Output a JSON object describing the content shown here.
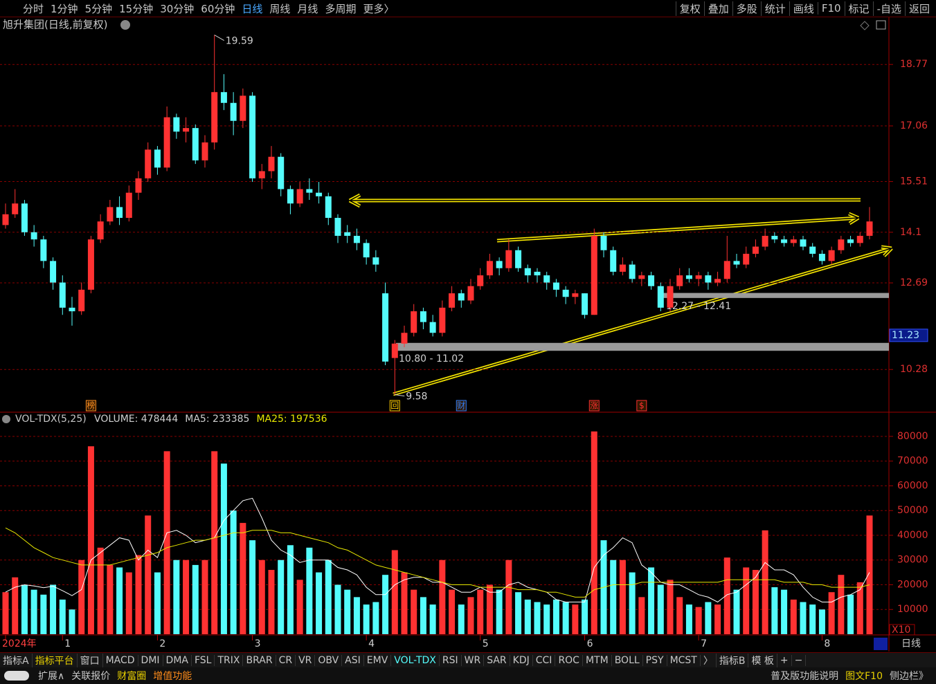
{
  "toolbar": {
    "left": [
      "分时",
      "1分钟",
      "5分钟",
      "15分钟",
      "30分钟",
      "60分钟",
      "日线",
      "周线",
      "月线",
      "多周期",
      "更多〉"
    ],
    "right": [
      "复权",
      "叠加",
      "多股",
      "统计",
      "画线",
      "F10",
      "标记",
      "-自选",
      "返回"
    ]
  },
  "chart_data": [
    {
      "type": "candlestick",
      "title": "旭升集团(日线,前复权)",
      "categories": [
        "2024年",
        null,
        null,
        null,
        null,
        null,
        "1",
        null,
        null,
        null,
        null,
        null,
        null,
        null,
        null,
        null,
        "2",
        null,
        null,
        null,
        null,
        null,
        null,
        null,
        null,
        null,
        "3",
        null,
        null,
        null,
        null,
        null,
        null,
        null,
        null,
        null,
        null,
        null,
        "4",
        null,
        null,
        null,
        null,
        null,
        null,
        null,
        null,
        null,
        null,
        null,
        "5",
        null,
        null,
        null,
        null,
        null,
        null,
        null,
        null,
        null,
        null,
        "6",
        null,
        null,
        null,
        null,
        null,
        null,
        null,
        null,
        null,
        null,
        null,
        "7",
        null,
        null,
        null,
        null,
        null,
        null,
        null,
        null,
        null,
        null,
        null,
        null,
        "8",
        null,
        null,
        null,
        null,
        null
      ],
      "values": [
        [
          14.3,
          14.9,
          14.2,
          14.6
        ],
        [
          14.6,
          15.3,
          14.5,
          14.9
        ],
        [
          14.9,
          15.0,
          14.0,
          14.1
        ],
        [
          14.1,
          14.3,
          13.7,
          13.9
        ],
        [
          13.9,
          14.0,
          13.1,
          13.3
        ],
        [
          13.3,
          13.4,
          12.5,
          12.7
        ],
        [
          12.7,
          12.9,
          11.8,
          12.0
        ],
        [
          12.0,
          12.3,
          11.5,
          11.9
        ],
        [
          11.9,
          12.7,
          11.8,
          12.5
        ],
        [
          12.5,
          14.0,
          12.4,
          13.9
        ],
        [
          13.9,
          14.6,
          13.8,
          14.4
        ],
        [
          14.4,
          15.0,
          14.3,
          14.8
        ],
        [
          14.8,
          15.1,
          14.3,
          14.5
        ],
        [
          14.5,
          15.4,
          14.4,
          15.2
        ],
        [
          15.2,
          15.8,
          15.0,
          15.6
        ],
        [
          15.6,
          16.6,
          15.5,
          16.4
        ],
        [
          16.4,
          16.5,
          15.7,
          15.9
        ],
        [
          15.9,
          17.6,
          15.8,
          17.3
        ],
        [
          17.3,
          17.4,
          16.7,
          16.9
        ],
        [
          16.9,
          17.3,
          16.6,
          17.0
        ],
        [
          17.0,
          17.1,
          16.0,
          16.1
        ],
        [
          16.1,
          16.8,
          15.9,
          16.6
        ],
        [
          16.6,
          19.59,
          16.4,
          18.0
        ],
        [
          18.0,
          18.5,
          17.5,
          17.7
        ],
        [
          17.7,
          18.0,
          16.8,
          17.2
        ],
        [
          17.2,
          18.1,
          17.0,
          17.9
        ],
        [
          17.9,
          18.0,
          15.5,
          15.6
        ],
        [
          15.6,
          16.0,
          15.3,
          15.8
        ],
        [
          15.8,
          16.5,
          15.6,
          16.2
        ],
        [
          16.2,
          16.3,
          15.1,
          15.3
        ],
        [
          15.3,
          15.4,
          14.6,
          14.9
        ],
        [
          14.9,
          15.5,
          14.8,
          15.3
        ],
        [
          15.3,
          15.6,
          15.0,
          15.2
        ],
        [
          15.2,
          15.5,
          14.9,
          15.1
        ],
        [
          15.1,
          15.2,
          14.3,
          14.5
        ],
        [
          14.5,
          14.6,
          13.8,
          14.0
        ],
        [
          14.1,
          14.3,
          13.8,
          14.0
        ],
        [
          14.0,
          14.2,
          13.6,
          13.8
        ],
        [
          13.8,
          13.9,
          13.2,
          13.4
        ],
        [
          13.4,
          13.6,
          13.0,
          13.2
        ],
        [
          12.4,
          12.7,
          10.4,
          10.5
        ],
        [
          10.6,
          11.1,
          9.58,
          11.0
        ],
        [
          11.0,
          11.5,
          10.9,
          11.3
        ],
        [
          11.3,
          12.1,
          11.2,
          11.9
        ],
        [
          11.9,
          12.0,
          11.4,
          11.6
        ],
        [
          11.6,
          11.8,
          11.2,
          11.3
        ],
        [
          11.3,
          12.2,
          11.2,
          12.0
        ],
        [
          12.0,
          12.6,
          11.9,
          12.4
        ],
        [
          12.4,
          12.5,
          12.0,
          12.2
        ],
        [
          12.2,
          12.8,
          12.1,
          12.6
        ],
        [
          12.6,
          13.1,
          12.5,
          12.9
        ],
        [
          12.9,
          13.5,
          12.8,
          13.3
        ],
        [
          13.3,
          13.4,
          12.9,
          13.1
        ],
        [
          13.1,
          13.9,
          13.0,
          13.6
        ],
        [
          13.6,
          13.7,
          13.0,
          13.1
        ],
        [
          13.1,
          13.2,
          12.7,
          12.9
        ],
        [
          13.0,
          13.1,
          12.7,
          12.9
        ],
        [
          12.9,
          13.0,
          12.5,
          12.7
        ],
        [
          12.7,
          12.8,
          12.3,
          12.5
        ],
        [
          12.5,
          12.6,
          12.1,
          12.3
        ],
        [
          12.3,
          12.5,
          12.1,
          12.4
        ],
        [
          12.4,
          12.4,
          11.7,
          11.8
        ],
        [
          11.8,
          14.2,
          11.8,
          14.0
        ],
        [
          14.0,
          14.1,
          13.4,
          13.6
        ],
        [
          13.6,
          13.7,
          12.9,
          13.0
        ],
        [
          13.0,
          13.4,
          12.9,
          13.2
        ],
        [
          13.2,
          13.3,
          12.7,
          12.8
        ],
        [
          12.8,
          13.0,
          12.6,
          12.9
        ],
        [
          12.9,
          13.0,
          12.5,
          12.6
        ],
        [
          12.6,
          12.7,
          11.9,
          12.0
        ],
        [
          12.0,
          12.8,
          11.9,
          12.6
        ],
        [
          12.6,
          13.1,
          12.5,
          12.9
        ],
        [
          12.9,
          13.1,
          12.7,
          12.8
        ],
        [
          12.8,
          13.0,
          12.6,
          12.9
        ],
        [
          12.9,
          13.0,
          12.5,
          12.7
        ],
        [
          12.7,
          13.0,
          12.6,
          12.8
        ],
        [
          12.8,
          14.0,
          12.7,
          13.3
        ],
        [
          13.3,
          13.5,
          13.1,
          13.2
        ],
        [
          13.2,
          13.7,
          13.1,
          13.5
        ],
        [
          13.5,
          13.9,
          13.4,
          13.7
        ],
        [
          13.7,
          14.2,
          13.6,
          14.0
        ],
        [
          14.0,
          14.1,
          13.8,
          13.9
        ],
        [
          13.9,
          14.0,
          13.7,
          13.8
        ],
        [
          13.8,
          14.0,
          13.7,
          13.9
        ],
        [
          13.9,
          14.0,
          13.6,
          13.7
        ],
        [
          13.7,
          13.8,
          13.4,
          13.5
        ],
        [
          13.5,
          13.6,
          13.2,
          13.3
        ],
        [
          13.3,
          13.7,
          13.2,
          13.6
        ],
        [
          13.6,
          14.0,
          13.5,
          13.9
        ],
        [
          13.9,
          14.0,
          13.7,
          13.8
        ],
        [
          13.8,
          14.1,
          13.7,
          14.0
        ],
        [
          14.0,
          14.8,
          13.9,
          14.4
        ]
      ],
      "up_color": "#ff3232",
      "down_color": "#54fcfc",
      "ylim": [
        9.11,
        19.64
      ],
      "yticks": [
        10.28,
        12.69,
        14.1,
        15.51,
        17.06,
        18.77
      ],
      "grid": true,
      "high_mark": 19.59,
      "low_mark": 9.58,
      "current_price": 11.23,
      "zones": [
        {
          "label": "10.80 - 11.02",
          "range": [
            10.8,
            11.02
          ]
        },
        {
          "label": "12.27 - 12.41",
          "range": [
            12.27,
            12.41
          ]
        }
      ],
      "events": [
        "榜",
        "回",
        "财",
        "涨",
        "$"
      ]
    },
    {
      "type": "bar",
      "title": "VOL-TDX(5,25)",
      "unit_label": "X10",
      "series": [
        {
          "name": "VOLUME: 478444",
          "values": [
            17000,
            23000,
            20000,
            18000,
            16000,
            20000,
            14000,
            10000,
            30000,
            76000,
            35000,
            28000,
            27000,
            25000,
            32000,
            48000,
            25000,
            74000,
            30000,
            30000,
            28000,
            30000,
            74000,
            69000,
            50000,
            45000,
            38000,
            30000,
            26000,
            30000,
            36000,
            22000,
            35000,
            25000,
            30000,
            20000,
            18000,
            15000,
            12000,
            13000,
            24000,
            34000,
            25000,
            18000,
            15000,
            12000,
            30000,
            18000,
            12000,
            15000,
            18000,
            20000,
            18000,
            30000,
            17000,
            14000,
            13000,
            12000,
            14000,
            13000,
            12000,
            14000,
            82000,
            38000,
            30000,
            30000,
            25000,
            15000,
            27000,
            20000,
            22000,
            15000,
            12000,
            11000,
            13000,
            12000,
            31000,
            18000,
            27000,
            26000,
            42000,
            19000,
            18000,
            14000,
            13000,
            12000,
            10000,
            17000,
            24000,
            16000,
            21000,
            48000
          ]
        },
        {
          "name": "MA5: 233385",
          "color": "#ffffff",
          "values": [
            17000,
            19000,
            20000,
            19500,
            18800,
            19400,
            17600,
            15600,
            18000,
            30000,
            33000,
            36000,
            39000,
            38000,
            30000,
            34000,
            31000,
            41000,
            42000,
            40000,
            37000,
            38000,
            39000,
            46000,
            50000,
            54000,
            55000,
            47000,
            38000,
            34000,
            32000,
            29000,
            30000,
            30000,
            30000,
            27000,
            26000,
            24000,
            19000,
            16000,
            16000,
            20000,
            22000,
            23000,
            23000,
            21000,
            21000,
            19000,
            17000,
            17000,
            19000,
            17000,
            17000,
            20000,
            21000,
            19000,
            18000,
            17000,
            14000,
            13000,
            13000,
            13000,
            27000,
            32000,
            35000,
            39000,
            37000,
            28000,
            25000,
            21000,
            20000,
            20000,
            18000,
            16000,
            15000,
            13000,
            16000,
            17000,
            20000,
            23000,
            29000,
            26000,
            26000,
            24000,
            19000,
            15000,
            13000,
            13000,
            15000,
            16000,
            18000,
            25000
          ]
        },
        {
          "name": "MA25: 197536",
          "color": "#e8e800",
          "values": [
            43000,
            41000,
            38000,
            35000,
            33000,
            31000,
            30000,
            29000,
            28000,
            28000,
            28000,
            28000,
            29000,
            30000,
            31000,
            32000,
            33000,
            35000,
            36000,
            37000,
            38000,
            38000,
            39000,
            40000,
            41000,
            41000,
            42000,
            42000,
            42000,
            41000,
            41000,
            40000,
            39000,
            38000,
            37000,
            35000,
            34000,
            32000,
            30000,
            28000,
            27000,
            26000,
            25000,
            24000,
            23000,
            22000,
            21000,
            20000,
            20000,
            20000,
            19000,
            19000,
            19000,
            19000,
            18000,
            18000,
            18000,
            17000,
            17000,
            16000,
            15000,
            15000,
            18000,
            19000,
            20000,
            20000,
            20000,
            21000,
            21000,
            21000,
            21000,
            21000,
            21000,
            21000,
            21000,
            21000,
            22000,
            22000,
            22000,
            22000,
            22000,
            22000,
            21000,
            21000,
            21000,
            20000,
            20000,
            19000,
            19000,
            19000,
            19000,
            20000
          ]
        }
      ],
      "ylim": [
        0,
        89500
      ],
      "yticks": [
        10000,
        20000,
        30000,
        40000,
        50000,
        60000,
        70000,
        80000
      ],
      "grid": true
    }
  ],
  "indicator_tabs": [
    "指标A",
    "指标平台",
    "窗口",
    "MACD",
    "DMI",
    "DMA",
    "FSL",
    "TRIX",
    "BRAR",
    "CR",
    "VR",
    "OBV",
    "ASI",
    "EMV",
    "VOL-TDX",
    "RSI",
    "WR",
    "SAR",
    "KDJ",
    "CCI",
    "ROC",
    "MTM",
    "BOLL",
    "PSY",
    "MCST",
    "〉",
    "指标B",
    "模 板",
    "+",
    "−"
  ],
  "side_label": "日线",
  "bottom_bar": {
    "left": [
      "扩展∧",
      "关联报价",
      "财富圈",
      "增值功能"
    ],
    "right": [
      "普及版功能说明",
      "图文F10",
      "侧边栏》"
    ]
  }
}
